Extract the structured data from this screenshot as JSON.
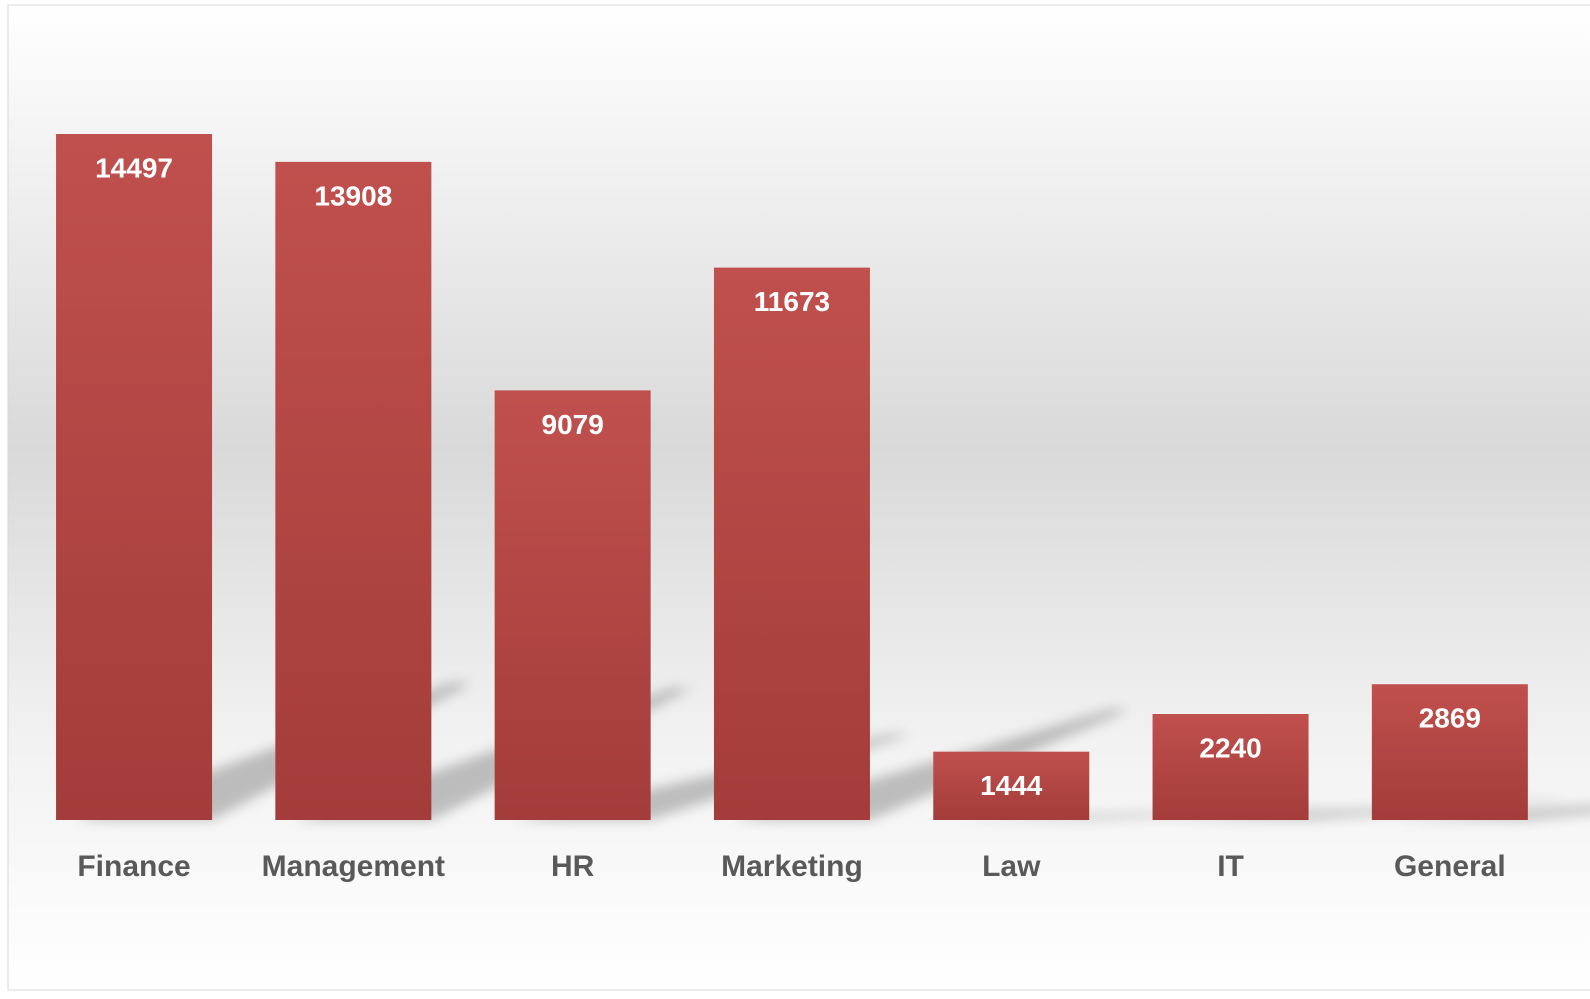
{
  "chart_data": {
    "type": "bar",
    "categories": [
      "Finance",
      "Management",
      "HR",
      "Marketing",
      "Law",
      "IT",
      "General"
    ],
    "values": [
      14497,
      13908,
      9079,
      11673,
      1444,
      2240,
      2869
    ],
    "color": "#c0504d"
  }
}
